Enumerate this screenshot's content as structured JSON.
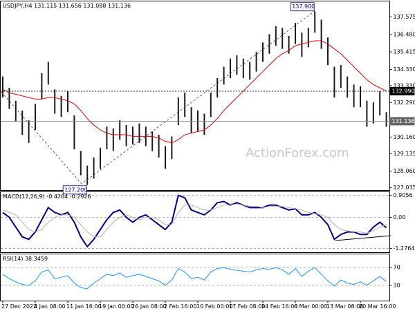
{
  "chart_data": [
    {
      "type": "ohlc",
      "title": "USDJPY,H4  131.115 131.656 131.088 131.136",
      "color": "#1a1a1a",
      "high": [
        133.9,
        133.2,
        132.4,
        131.8,
        131.2,
        132.2,
        134.1,
        134.8,
        133.1,
        132.7,
        133.0,
        131.5,
        129.3,
        128.4,
        128.9,
        129.5,
        130.8,
        130.7,
        131.2,
        130.9,
        130.8,
        131.0,
        130.8,
        130.5,
        130.3,
        129.6,
        130.2,
        132.6,
        132.9,
        132.0,
        131.8,
        131.6,
        132.9,
        133.8,
        134.5,
        135.0,
        135.2,
        135.0,
        134.8,
        135.4,
        136.0,
        136.5,
        137.0,
        136.9,
        136.4,
        137.2,
        136.6,
        136.9,
        137.9,
        137.4,
        136.3,
        134.5,
        134.6,
        133.9,
        133.4,
        133.3,
        132.4,
        132.3,
        133.0,
        131.7
      ],
      "low": [
        132.6,
        131.9,
        131.1,
        130.3,
        129.8,
        130.6,
        132.5,
        133.4,
        131.6,
        131.4,
        131.7,
        129.4,
        127.8,
        127.2,
        127.6,
        128.2,
        129.4,
        129.3,
        130.0,
        129.6,
        129.7,
        129.8,
        129.6,
        129.3,
        128.9,
        128.2,
        128.8,
        130.9,
        131.4,
        130.4,
        130.5,
        130.3,
        131.4,
        132.6,
        133.4,
        133.8,
        134.0,
        133.8,
        133.7,
        134.2,
        134.8,
        135.3,
        135.8,
        135.6,
        135.3,
        135.9,
        135.1,
        135.7,
        136.6,
        135.6,
        134.6,
        132.6,
        133.2,
        132.6,
        132.0,
        132.0,
        130.8,
        131.0,
        131.5,
        130.8
      ],
      "ma": {
        "color": "#e00000",
        "values": [
          133.1,
          132.9,
          132.8,
          132.7,
          132.6,
          132.5,
          132.5,
          132.6,
          132.6,
          132.5,
          132.4,
          132.2,
          131.8,
          131.3,
          130.9,
          130.6,
          130.4,
          130.3,
          130.3,
          130.3,
          130.2,
          130.2,
          130.2,
          130.2,
          130.1,
          129.9,
          129.8,
          130.0,
          130.3,
          130.4,
          130.5,
          130.6,
          130.9,
          131.3,
          131.8,
          132.2,
          132.6,
          133.0,
          133.4,
          133.8,
          134.2,
          134.6,
          135.0,
          135.3,
          135.5,
          135.8,
          135.9,
          136.0,
          136.1,
          136.1,
          135.9,
          135.6,
          135.3,
          134.9,
          134.5,
          134.1,
          133.7,
          133.4,
          133.2,
          133.0
        ]
      },
      "ylim": [
        126.87,
        138.55
      ],
      "yticks": [
        137.575,
        {
          "value": 136.48,
          "label": "136.480"
        },
        135.415,
        {
          "value": 134.33,
          "label": "134.330"
        },
        {
          "value": 133.33,
          "label": "133.330"
        },
        {
          "value": 132.29,
          "label": "132.290"
        },
        {
          "value": 130.16,
          "label": "130.160"
        },
        129.135,
        {
          "value": 128.06,
          "label": "128.060"
        },
        127.035
      ],
      "grid": false,
      "levels": [
        {
          "value": 132.99,
          "label": "132.990",
          "style": "dotted"
        },
        {
          "value": 131.136,
          "label": "131.136",
          "style": "solid"
        }
      ],
      "annotations": [
        {
          "value": 137.9,
          "label": "137.900"
        },
        {
          "value": 127.2,
          "label": "127.200"
        }
      ],
      "watermark": "ActionForex.com"
    },
    {
      "type": "macd",
      "title": "MACD(12,26,9) -0.4264 -0.2926",
      "series": [
        {
          "color": "#000080",
          "width": 2,
          "values": [
            0.2,
            0.0,
            -0.4,
            -0.8,
            -0.9,
            -0.6,
            -0.1,
            0.4,
            0.2,
            0.1,
            0.2,
            -0.2,
            -0.8,
            -1.2,
            -0.9,
            -0.5,
            -0.1,
            0.2,
            0.3,
            0.0,
            -0.2,
            0.0,
            0.1,
            -0.1,
            -0.3,
            -0.5,
            -0.2,
            0.9,
            0.8,
            0.3,
            0.2,
            0.1,
            0.3,
            0.6,
            0.65,
            0.5,
            0.6,
            0.5,
            0.4,
            0.4,
            0.4,
            0.5,
            0.5,
            0.4,
            0.3,
            0.35,
            0.1,
            0.1,
            0.2,
            0.0,
            -0.3,
            -0.9,
            -0.7,
            -0.6,
            -0.6,
            -0.7,
            -0.7,
            -0.4,
            -0.2,
            -0.4264
          ]
        },
        {
          "color": "#b0b0b0",
          "width": 1,
          "values": [
            0.3,
            0.2,
            0.1,
            -0.2,
            -0.5,
            -0.6,
            -0.5,
            -0.2,
            0.0,
            0.1,
            0.1,
            0.0,
            -0.3,
            -0.6,
            -0.8,
            -0.8,
            -0.5,
            -0.2,
            0.0,
            0.1,
            0.0,
            -0.1,
            0.0,
            0.0,
            -0.1,
            -0.3,
            -0.3,
            0.2,
            0.5,
            0.5,
            0.4,
            0.3,
            0.3,
            0.4,
            0.5,
            0.5,
            0.55,
            0.5,
            0.45,
            0.45,
            0.4,
            0.45,
            0.45,
            0.45,
            0.4,
            0.35,
            0.3,
            0.2,
            0.15,
            0.1,
            0.0,
            -0.3,
            -0.5,
            -0.55,
            -0.6,
            -0.6,
            -0.65,
            -0.55,
            -0.4,
            -0.2926
          ]
        }
      ],
      "ylim": [
        -1.444,
        1.046
      ],
      "yticks": [
        0.9056,
        {
          "value": 0,
          "label": "0.00"
        },
        -1.2764
      ],
      "grid": true
    },
    {
      "type": "line",
      "title": "RSI(14) 38.3459",
      "series": [
        {
          "color": "#1e90ff",
          "width": 1,
          "values": [
            55,
            45,
            38,
            32,
            30,
            40,
            60,
            65,
            45,
            48,
            52,
            35,
            25,
            22,
            35,
            45,
            55,
            52,
            58,
            48,
            52,
            55,
            50,
            45,
            40,
            30,
            42,
            68,
            60,
            45,
            48,
            42,
            60,
            68,
            70,
            66,
            64,
            62,
            60,
            65,
            68,
            66,
            70,
            65,
            55,
            68,
            50,
            62,
            70,
            55,
            40,
            28,
            42,
            35,
            32,
            38,
            30,
            40,
            50,
            38.3459
          ]
        }
      ],
      "ylim": [
        -5.4,
        100.8
      ],
      "yticks": [
        70,
        30
      ],
      "grid": true,
      "categories": [
        "27 Dec 2022",
        null,
        null,
        null,
        null,
        "4 Jan 08:00",
        null,
        null,
        null,
        null,
        "11 Jan 16:00",
        null,
        null,
        null,
        null,
        "19 Jan 00:00",
        null,
        null,
        null,
        null,
        "26 Jan 08:00",
        null,
        null,
        null,
        null,
        "2 Feb 16:00",
        null,
        null,
        null,
        null,
        "10 Feb 00:00",
        null,
        null,
        null,
        null,
        "17 Feb 08:00",
        null,
        null,
        null,
        null,
        "24 Feb 16:00",
        null,
        null,
        null,
        null,
        "6 Mar 00:00",
        null,
        null,
        null,
        null,
        "13 Mar 08:00",
        null,
        null,
        null,
        null,
        "20 Mar 16:00",
        null,
        null,
        null,
        null
      ]
    }
  ]
}
